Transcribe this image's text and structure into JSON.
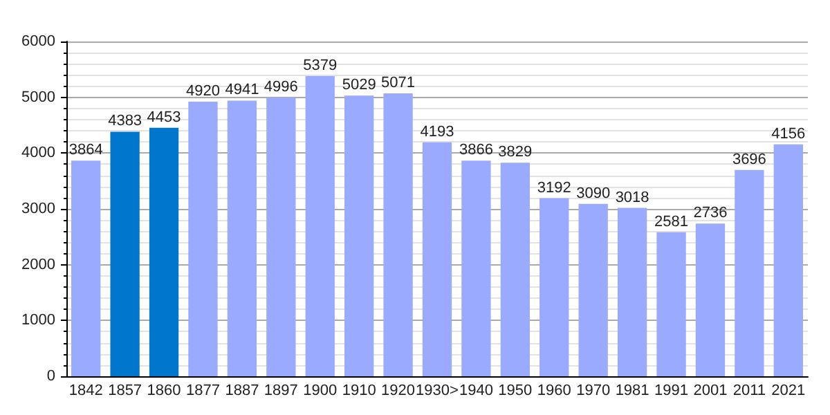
{
  "chart_data": {
    "type": "bar",
    "categories": [
      "1842",
      "1857",
      "1860",
      "1877",
      "1887",
      "1897",
      "1900",
      "1910",
      "1920",
      "1930>",
      "1940",
      "1950",
      "1960",
      "1970",
      "1981",
      "1991",
      "2001",
      "2011",
      "2021"
    ],
    "values": [
      3864,
      4383,
      4453,
      4920,
      4941,
      4996,
      5379,
      5029,
      5071,
      4193,
      3866,
      3829,
      3192,
      3090,
      3018,
      2581,
      2736,
      3696,
      4156
    ],
    "colors": [
      "#99aaff",
      "#0077cc",
      "#0077cc",
      "#99aaff",
      "#99aaff",
      "#99aaff",
      "#99aaff",
      "#99aaff",
      "#99aaff",
      "#99aaff",
      "#99aaff",
      "#99aaff",
      "#99aaff",
      "#99aaff",
      "#99aaff",
      "#99aaff",
      "#99aaff",
      "#99aaff",
      "#99aaff"
    ],
    "ylim": [
      0,
      6000
    ],
    "yticks": [
      0,
      1000,
      2000,
      3000,
      4000,
      5000,
      6000
    ],
    "grid": "y",
    "data_labels": true
  }
}
